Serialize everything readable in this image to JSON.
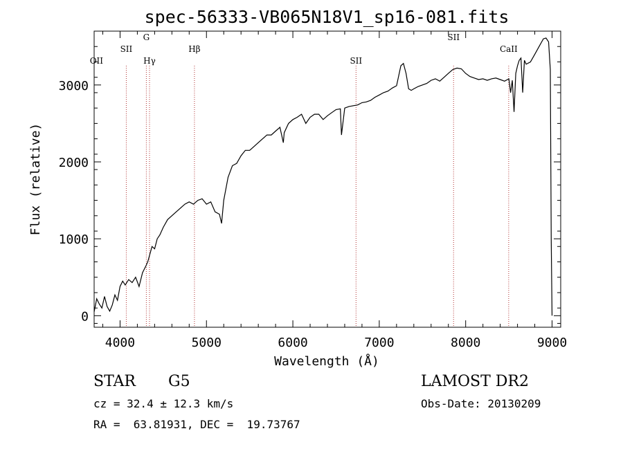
{
  "chart_data": {
    "type": "line",
    "title": "spec-56333-VB065N18V1_sp16-081.fits",
    "xlabel": "Wavelength (Å)",
    "ylabel": "Flux (relative)",
    "xlim": [
      3700,
      9100
    ],
    "ylim": [
      -150,
      3700
    ],
    "x_ticks": [
      4000,
      5000,
      6000,
      7000,
      8000,
      9000
    ],
    "y_ticks": [
      0,
      1000,
      2000,
      3000
    ],
    "grid": false,
    "series": [
      {
        "x": [
          3700,
          3730,
          3760,
          3790,
          3820,
          3850,
          3880,
          3910,
          3940,
          3970,
          4000,
          4030,
          4060,
          4100,
          4140,
          4180,
          4220,
          4260,
          4300,
          4320,
          4340,
          4370,
          4400,
          4430,
          4460,
          4500,
          4550,
          4600,
          4650,
          4700,
          4750,
          4800,
          4850,
          4900,
          4950,
          5000,
          5050,
          5100,
          5150,
          5175,
          5200,
          5250,
          5300,
          5350,
          5400,
          5450,
          5500,
          5550,
          5600,
          5650,
          5700,
          5750,
          5800,
          5850,
          5890,
          5900,
          5950,
          6000,
          6050,
          6100,
          6150,
          6200,
          6250,
          6300,
          6350,
          6400,
          6450,
          6500,
          6550,
          6563,
          6600,
          6650,
          6700,
          6750,
          6800,
          6850,
          6900,
          6950,
          7000,
          7050,
          7100,
          7150,
          7200,
          7250,
          7280,
          7310,
          7340,
          7370,
          7400,
          7450,
          7500,
          7550,
          7600,
          7650,
          7700,
          7750,
          7800,
          7850,
          7900,
          7950,
          8000,
          8050,
          8100,
          8150,
          8200,
          8250,
          8300,
          8350,
          8400,
          8450,
          8500,
          8520,
          8540,
          8560,
          8580,
          8600,
          8620,
          8640,
          8660,
          8680,
          8700,
          8750,
          8800,
          8850,
          8900,
          8930,
          8960,
          8980,
          8990,
          9000
        ],
        "y": [
          50,
          220,
          150,
          100,
          250,
          120,
          60,
          140,
          270,
          200,
          380,
          450,
          400,
          470,
          430,
          500,
          380,
          560,
          650,
          700,
          780,
          900,
          870,
          1000,
          1050,
          1150,
          1250,
          1300,
          1350,
          1400,
          1450,
          1480,
          1450,
          1500,
          1520,
          1450,
          1480,
          1350,
          1320,
          1200,
          1500,
          1800,
          1950,
          1980,
          2080,
          2150,
          2150,
          2200,
          2250,
          2300,
          2350,
          2350,
          2400,
          2450,
          2250,
          2380,
          2500,
          2550,
          2580,
          2620,
          2500,
          2580,
          2620,
          2620,
          2550,
          2600,
          2640,
          2680,
          2690,
          2350,
          2700,
          2720,
          2730,
          2740,
          2770,
          2780,
          2800,
          2840,
          2870,
          2900,
          2920,
          2960,
          2990,
          3250,
          3280,
          3150,
          2950,
          2930,
          2950,
          2980,
          3000,
          3020,
          3060,
          3080,
          3050,
          3100,
          3150,
          3200,
          3220,
          3210,
          3150,
          3110,
          3090,
          3070,
          3080,
          3060,
          3080,
          3090,
          3070,
          3050,
          3080,
          2900,
          3060,
          2650,
          3150,
          3250,
          3320,
          3350,
          2900,
          3320,
          3270,
          3300,
          3400,
          3500,
          3600,
          3610,
          3560,
          3200,
          1000,
          0
        ]
      }
    ],
    "lines": [
      {
        "label": "OII",
        "x": 3727,
        "marker": false
      },
      {
        "label": "SII",
        "x": 4072,
        "marker": true
      },
      {
        "label": "G",
        "x": 4304,
        "marker": true
      },
      {
        "label": "Hγ",
        "x": 4341,
        "marker": true
      },
      {
        "label": "Hβ",
        "x": 4861,
        "marker": true
      },
      {
        "label": "SII",
        "x": 6731,
        "marker": true
      },
      {
        "label": "SII",
        "x": 7860,
        "marker": true
      },
      {
        "label": "CaII",
        "x": 8498,
        "marker": true
      }
    ],
    "line_color": "#b03030"
  },
  "info": {
    "class_type": "STAR",
    "subclass": "G5",
    "survey": "LAMOST DR2",
    "cz": "cz = 32.4 ± 12.3 km/s",
    "obs_date": "Obs-Date: 20130209",
    "coords": "RA =  63.81931, DEC =  19.73767"
  }
}
